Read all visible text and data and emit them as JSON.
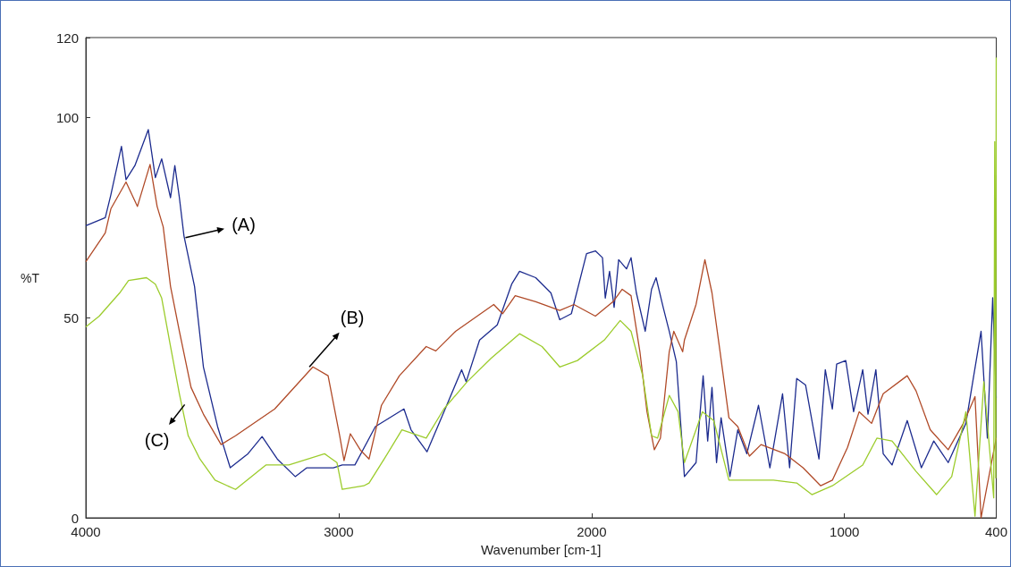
{
  "chart_data": {
    "type": "line",
    "xlabel": "Wavenumber [cm-1]",
    "ylabel": "%T",
    "xlim": [
      4000,
      400
    ],
    "xticks": [
      4000,
      3000,
      2000,
      1000,
      400
    ],
    "ylim": [
      0,
      120
    ],
    "yticks": [
      0,
      50,
      100,
      120
    ],
    "series": [
      {
        "color": "#1c2b8e",
        "x": [
          4000,
          3923,
          3901,
          3859,
          3841,
          3806,
          3753,
          3725,
          3700,
          3665,
          3648,
          3630,
          3612,
          3570,
          3535,
          3479,
          3429,
          3359,
          3303,
          3243,
          3172,
          3126,
          3021,
          2986,
          2936,
          2855,
          2742,
          2714,
          2651,
          2573,
          2514,
          2496,
          2443,
          2373,
          2316,
          2285,
          2221,
          2161,
          2126,
          2080,
          2020,
          1985,
          1957,
          1946,
          1929,
          1911,
          1893,
          1862,
          1844,
          1823,
          1788,
          1763,
          1745,
          1717,
          1693,
          1665,
          1633,
          1587,
          1559,
          1541,
          1524,
          1506,
          1488,
          1453,
          1422,
          1386,
          1340,
          1295,
          1245,
          1217,
          1189,
          1154,
          1118,
          1101,
          1076,
          1048,
          1031,
          995,
          964,
          928,
          907,
          876,
          847,
          812,
          752,
          696,
          647,
          590,
          520,
          460,
          435,
          414,
          400
        ],
        "values": [
          73,
          75,
          80.7,
          92.8,
          84.5,
          88,
          97,
          85,
          89.7,
          80,
          88,
          80,
          70.5,
          57.8,
          37.7,
          22.8,
          12.5,
          16,
          20.3,
          14.7,
          10.3,
          12.5,
          12.5,
          13.2,
          13.2,
          22.8,
          27.2,
          22,
          16.5,
          28.1,
          37,
          34,
          44.4,
          48.2,
          58.4,
          61.6,
          60,
          56.2,
          49.5,
          51,
          66,
          66.7,
          65,
          54.9,
          61.6,
          52.6,
          64.5,
          62.2,
          65,
          56.2,
          46.6,
          57.1,
          60,
          52.6,
          46.6,
          39,
          10.3,
          13.8,
          35.5,
          19.2,
          32.6,
          13.8,
          25,
          10.3,
          22,
          16,
          28.1,
          12.5,
          31,
          12.5,
          34.8,
          33.2,
          20.5,
          14.7,
          37,
          27.2,
          38.4,
          39.3,
          26.5,
          37,
          25.9,
          37,
          16,
          13.2,
          24.3,
          12.5,
          19.2,
          13.8,
          23.6,
          46.6,
          19.9,
          55,
          30
        ]
      },
      {
        "color": "#b04a28",
        "x": [
          4000,
          3923,
          3901,
          3841,
          3796,
          3746,
          3718,
          3694,
          3665,
          3630,
          3584,
          3535,
          3465,
          3408,
          3253,
          3102,
          3042,
          2996,
          2979,
          2954,
          2915,
          2880,
          2831,
          2760,
          2654,
          2616,
          2538,
          2387,
          2352,
          2302,
          2221,
          2126,
          2070,
          1985,
          1915,
          1879,
          1844,
          1809,
          1781,
          1752,
          1728,
          1693,
          1675,
          1640,
          1633,
          1587,
          1552,
          1524,
          1492,
          1457,
          1422,
          1376,
          1330,
          1235,
          1164,
          1094,
          1048,
          988,
          942,
          893,
          847,
          752,
          717,
          661,
          590,
          530,
          484,
          460,
          400
        ],
        "values": [
          64,
          71.2,
          77.2,
          83.9,
          77.8,
          88.3,
          77.8,
          72.7,
          57.8,
          46.6,
          32.6,
          25.9,
          18.3,
          20.5,
          27.2,
          37.7,
          35.5,
          20.5,
          14.3,
          21,
          17,
          14.7,
          28.1,
          35.5,
          42.8,
          41.7,
          46.6,
          53.3,
          51,
          55.5,
          54,
          51.8,
          53.3,
          50.4,
          54,
          57.1,
          55.5,
          41.5,
          26.5,
          17,
          19.9,
          41.5,
          46.6,
          41.5,
          44.4,
          53.3,
          64.5,
          56.2,
          41.5,
          25,
          22.8,
          15.4,
          18.3,
          16,
          12.5,
          8,
          9.4,
          17.6,
          26.5,
          23.6,
          31,
          35.5,
          31.7,
          22,
          17,
          23.6,
          30.3,
          0,
          20
        ]
      },
      {
        "color": "#9ccc2c",
        "x": [
          4000,
          3947,
          3866,
          3831,
          3760,
          3725,
          3700,
          3665,
          3630,
          3595,
          3549,
          3489,
          3408,
          3288,
          3197,
          3056,
          3007,
          2986,
          2901,
          2880,
          2820,
          2750,
          2654,
          2584,
          2492,
          2397,
          2285,
          2196,
          2126,
          2056,
          1950,
          1887,
          1844,
          1798,
          1763,
          1739,
          1693,
          1658,
          1633,
          1562,
          1517,
          1457,
          1400,
          1281,
          1189,
          1129,
          1048,
          928,
          872,
          812,
          717,
          636,
          576,
          520,
          484,
          449,
          410,
          406,
          402,
          400
        ],
        "values": [
          47.7,
          50.4,
          56.2,
          59.3,
          60,
          58.4,
          54.9,
          42.8,
          31,
          20.5,
          14.7,
          9.4,
          7.1,
          13.2,
          13.2,
          16,
          13.8,
          7.1,
          8,
          8.7,
          14.7,
          22,
          19.9,
          27.2,
          34,
          39.9,
          46,
          42.8,
          37.7,
          39.3,
          44.4,
          49.3,
          46.6,
          35.5,
          20.5,
          19.9,
          30.6,
          26.5,
          13.8,
          26.5,
          24.3,
          9.4,
          9.4,
          9.4,
          8.7,
          5.8,
          8,
          13.2,
          19.9,
          19.2,
          11.6,
          5.8,
          10.3,
          26.5,
          0.4,
          34,
          5,
          94,
          10,
          115
        ]
      }
    ],
    "annotations": [
      {
        "text": "(A)",
        "x": 3606,
        "y": 70
      },
      {
        "text": "(B)",
        "x": 3116,
        "y": 37.7
      },
      {
        "text": "(C)",
        "x": 3609,
        "y": 28.3
      }
    ]
  }
}
